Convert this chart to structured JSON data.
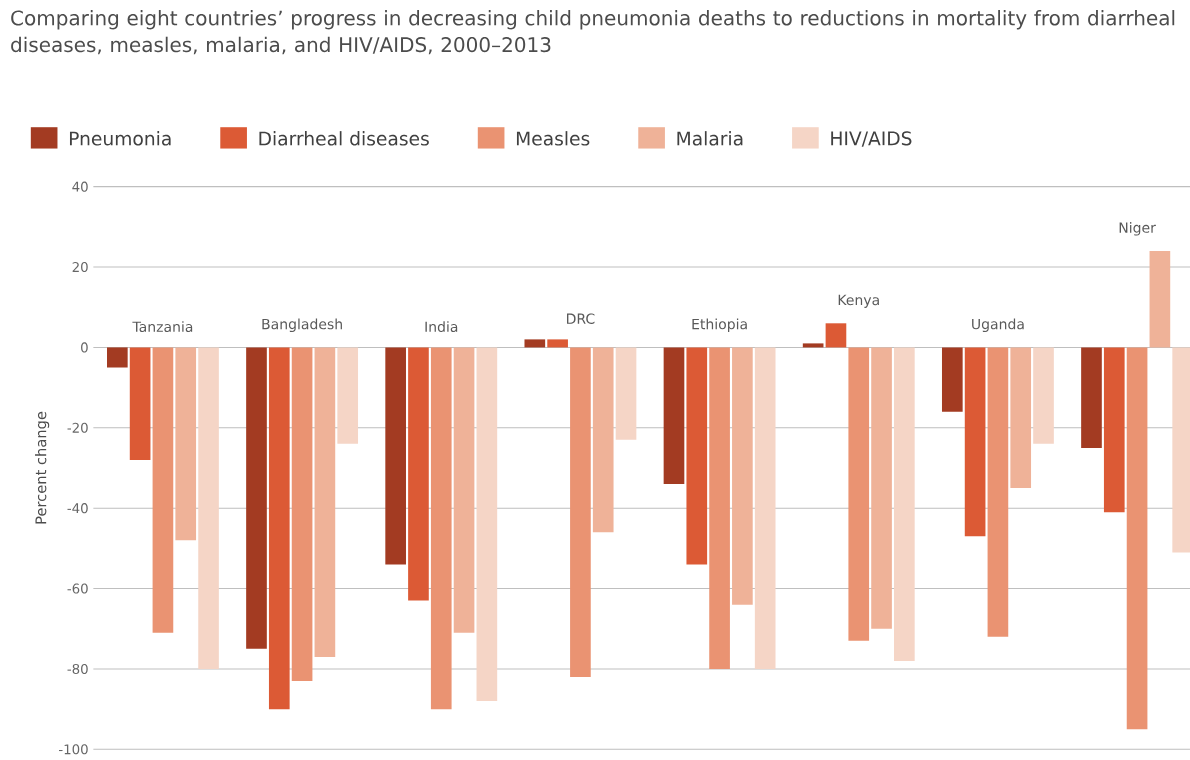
{
  "chart_data": {
    "type": "bar",
    "title": "Comparing eight countries’ progress in decreasing child pneumonia deaths to reductions in mortality from diarrheal diseases, measles, malaria, and HIV/AIDS, 2000–2013",
    "ylabel": "Percent change",
    "categories": [
      "Tanzania",
      "Bangladesh",
      "India",
      "DRC",
      "Ethiopia",
      "Kenya",
      "Uganda",
      "Niger"
    ],
    "series": [
      {
        "name": "Pneumonia",
        "color": "#a33b22",
        "values": [
          -5,
          -75,
          -54,
          2,
          -34,
          1,
          -16,
          -25
        ]
      },
      {
        "name": "Diarrheal diseases",
        "color": "#dc5a35",
        "values": [
          -28,
          -90,
          -63,
          2,
          -54,
          6,
          -47,
          -41
        ]
      },
      {
        "name": "Measles",
        "color": "#ea9372",
        "values": [
          -71,
          -83,
          -90,
          -82,
          -80,
          -73,
          -72,
          -95
        ]
      },
      {
        "name": "Malaria",
        "color": "#efb298",
        "values": [
          -48,
          -77,
          -71,
          -46,
          -64,
          -70,
          -35,
          24
        ]
      },
      {
        "name": "HIV/AIDS",
        "color": "#f5d5c6",
        "values": [
          -80,
          -24,
          -88,
          -23,
          -80,
          -78,
          -24,
          -51
        ]
      }
    ],
    "ylim": [
      -100,
      40
    ],
    "yticks": [
      -100,
      -80,
      -60,
      -40,
      -20,
      0,
      20,
      40
    ],
    "grid": "y",
    "legend": "top"
  }
}
